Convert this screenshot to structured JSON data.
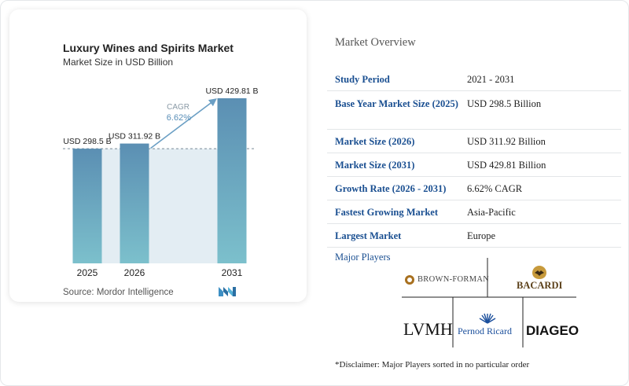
{
  "chart_data": {
    "type": "bar",
    "title": "Luxury Wines and Spirits Market",
    "subtitle": "Market Size in USD Billion",
    "categories": [
      "2025",
      "2026",
      "2031"
    ],
    "values": [
      298.5,
      311.92,
      429.81
    ],
    "data_labels": [
      "USD 298.5 B",
      "USD 311.92 B",
      "USD 429.81 B"
    ],
    "cagr_label": "CAGR",
    "cagr_value": "6.62%",
    "ylim": [
      0,
      440
    ],
    "colors": {
      "bar_top": "#5b8fb3",
      "bar_bottom": "#7cc0cc",
      "shade": "#e3edf3",
      "arrow": "#6b9fc4",
      "cagr_text": "#5a8fb8"
    }
  },
  "source": "Source: Mordor Intelligence",
  "overview": {
    "title": "Market Overview",
    "rows": [
      {
        "label": "Study Period",
        "value": "2021 - 2031"
      },
      {
        "label": "Base Year Market Size (2025)",
        "value": "USD 298.5 Billion"
      },
      {
        "label": "Market Size (2026)",
        "value": "USD 311.92 Billion"
      },
      {
        "label": "Market Size (2031)",
        "value": "USD 429.81 Billion"
      },
      {
        "label": "Growth Rate (2026 - 2031)",
        "value": "6.62% CAGR"
      },
      {
        "label": "Fastest Growing Market",
        "value": "Asia-Pacific"
      },
      {
        "label": "Largest Market",
        "value": "Europe"
      }
    ]
  },
  "players": {
    "title": "Major Players",
    "names": [
      "BROWN-FORMAN",
      "BACARDI",
      "LVMH",
      "Pernod Ricard",
      "DIAGEO"
    ]
  },
  "disclaimer": "*Disclaimer: Major Players sorted in no particular order"
}
